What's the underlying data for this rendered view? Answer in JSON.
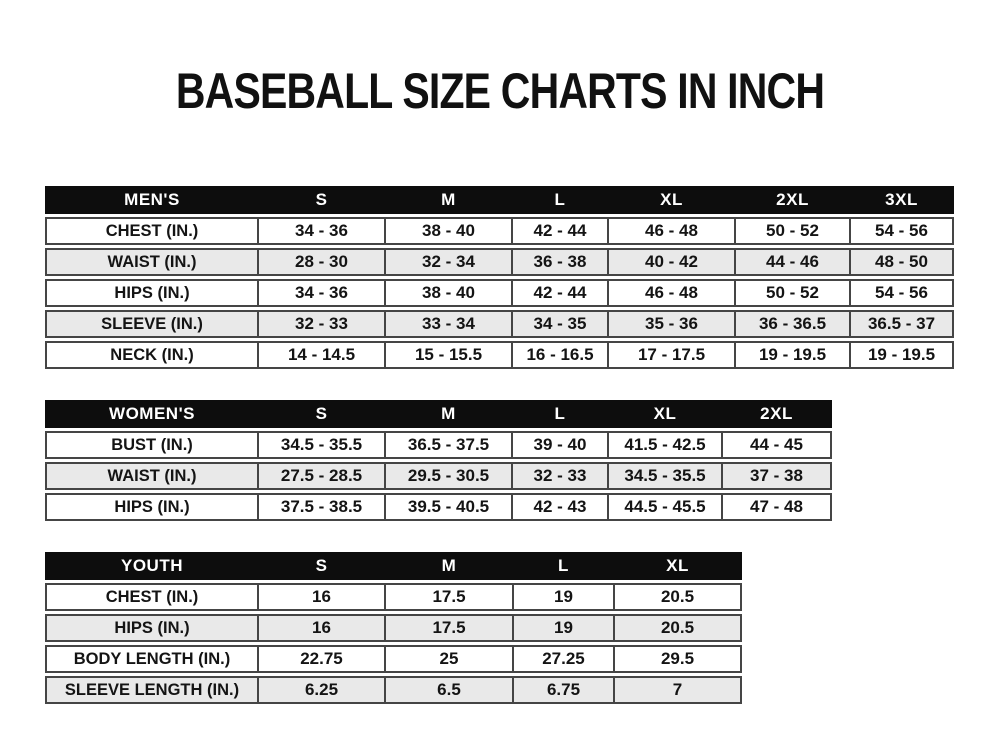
{
  "title": "BASEBALL SIZE CHARTS IN INCH",
  "colors": {
    "header_bg": "#0d0d0d",
    "header_text": "#ffffff",
    "row_alt_bg": "#e9e9e9",
    "border": "#454545",
    "text": "#141414",
    "page_bg": "#ffffff"
  },
  "tables": [
    {
      "name": "mens",
      "header": [
        "MEN'S",
        "S",
        "M",
        "L",
        "XL",
        "2XL",
        "3XL"
      ],
      "rows": [
        {
          "label": "CHEST (IN.)",
          "values": [
            "34 - 36",
            "38 - 40",
            "42 - 44",
            "46 - 48",
            "50 - 52",
            "54 - 56"
          ]
        },
        {
          "label": "WAIST (IN.)",
          "values": [
            "28 - 30",
            "32 - 34",
            "36 - 38",
            "40 - 42",
            "44 - 46",
            "48 - 50"
          ]
        },
        {
          "label": "HIPS (IN.)",
          "values": [
            "34 - 36",
            "38 - 40",
            "42 - 44",
            "46 - 48",
            "50 - 52",
            "54 - 56"
          ]
        },
        {
          "label": "SLEEVE (IN.)",
          "values": [
            "32 - 33",
            "33 - 34",
            "34 - 35",
            "35 - 36",
            "36 - 36.5",
            "36.5 - 37"
          ]
        },
        {
          "label": "NECK (IN.)",
          "values": [
            "14 - 14.5",
            "15 - 15.5",
            "16 - 16.5",
            "17 - 17.5",
            "19 - 19.5",
            "19 - 19.5"
          ]
        }
      ]
    },
    {
      "name": "womens",
      "header": [
        "WOMEN'S",
        "S",
        "M",
        "L",
        "XL",
        "2XL"
      ],
      "rows": [
        {
          "label": "BUST (IN.)",
          "values": [
            "34.5 - 35.5",
            "36.5 - 37.5",
            "39 - 40",
            "41.5 - 42.5",
            "44 - 45"
          ]
        },
        {
          "label": "WAIST (IN.)",
          "values": [
            "27.5 - 28.5",
            "29.5 - 30.5",
            "32 - 33",
            "34.5 - 35.5",
            "37 - 38"
          ]
        },
        {
          "label": "HIPS (IN.)",
          "values": [
            "37.5 - 38.5",
            "39.5 - 40.5",
            "42 - 43",
            "44.5 - 45.5",
            "47 - 48"
          ]
        }
      ]
    },
    {
      "name": "youth",
      "header": [
        "YOUTH",
        "S",
        "M",
        "L",
        "XL"
      ],
      "rows": [
        {
          "label": "CHEST (IN.)",
          "values": [
            "16",
            "17.5",
            "19",
            "20.5"
          ]
        },
        {
          "label": "HIPS (IN.)",
          "values": [
            "16",
            "17.5",
            "19",
            "20.5"
          ]
        },
        {
          "label": "BODY LENGTH (IN.)",
          "values": [
            "22.75",
            "25",
            "27.25",
            "29.5"
          ]
        },
        {
          "label": "SLEEVE LENGTH (IN.)",
          "values": [
            "6.25",
            "6.5",
            "6.75",
            "7"
          ]
        }
      ]
    }
  ]
}
